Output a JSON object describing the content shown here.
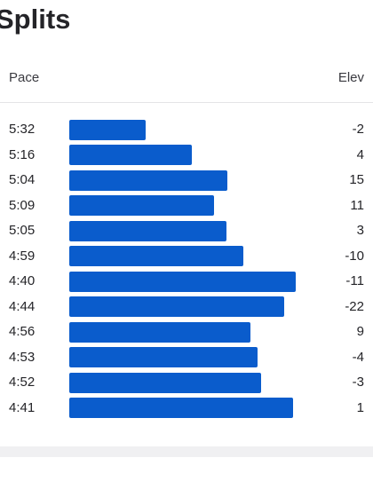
{
  "header": {
    "title": "Splits"
  },
  "table": {
    "columns": {
      "pace": "Pace",
      "elev": "Elev"
    },
    "rows": [
      {
        "pace": "5:32",
        "elev": "-2",
        "bar_fraction": 0.32
      },
      {
        "pace": "5:16",
        "elev": "4",
        "bar_fraction": 0.51
      },
      {
        "pace": "5:04",
        "elev": "15",
        "bar_fraction": 0.66
      },
      {
        "pace": "5:09",
        "elev": "11",
        "bar_fraction": 0.605
      },
      {
        "pace": "5:05",
        "elev": "3",
        "bar_fraction": 0.655
      },
      {
        "pace": "4:59",
        "elev": "-10",
        "bar_fraction": 0.725
      },
      {
        "pace": "4:40",
        "elev": "-11",
        "bar_fraction": 0.945
      },
      {
        "pace": "4:44",
        "elev": "-22",
        "bar_fraction": 0.895
      },
      {
        "pace": "4:56",
        "elev": "9",
        "bar_fraction": 0.755
      },
      {
        "pace": "4:53",
        "elev": "-4",
        "bar_fraction": 0.785
      },
      {
        "pace": "4:52",
        "elev": "-3",
        "bar_fraction": 0.8
      },
      {
        "pace": "4:41",
        "elev": "1",
        "bar_fraction": 0.935
      }
    ]
  },
  "colors": {
    "bar": "#0a5ccc"
  }
}
